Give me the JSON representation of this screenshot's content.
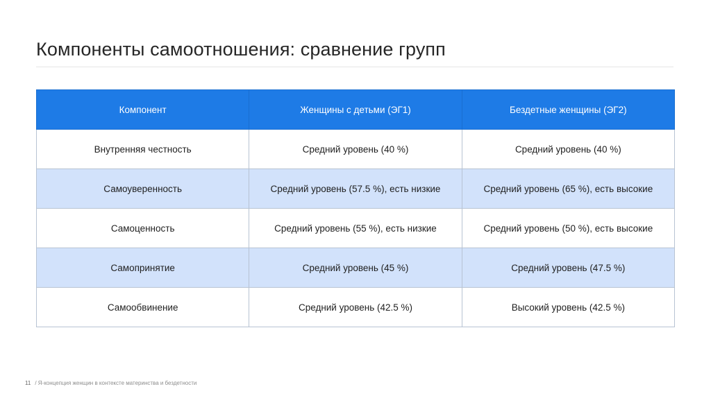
{
  "slide": {
    "title": "Компоненты самоотношения: сравнение групп",
    "page_number": "11",
    "footer_text": "/ Я-концепция женщин в контексте материнства и бездетности"
  },
  "table": {
    "headers": [
      "Компонент",
      "Женщины с детьми (ЭГ1)",
      "Бездетные женщины (ЭГ2)"
    ],
    "rows": [
      [
        "Внутренняя честность",
        "Средний уровень (40 %)",
        "Средний уровень (40 %)"
      ],
      [
        "Самоуверенность",
        "Средний уровень (57.5 %), есть низкие",
        "Средний уровень (65 %), есть высокие"
      ],
      [
        "Самоценность",
        "Средний уровень (55 %), есть низкие",
        "Средний уровень (50 %), есть высокие"
      ],
      [
        "Самопринятие",
        "Средний уровень (45 %)",
        "Средний уровень (47.5 %)"
      ],
      [
        "Самообвинение",
        "Средний уровень (42.5 %)",
        "Высокий уровень (42.5 %)"
      ]
    ]
  },
  "colors": {
    "header_bg": "#1e7be6",
    "stripe_bg": "#d2e2fb"
  }
}
